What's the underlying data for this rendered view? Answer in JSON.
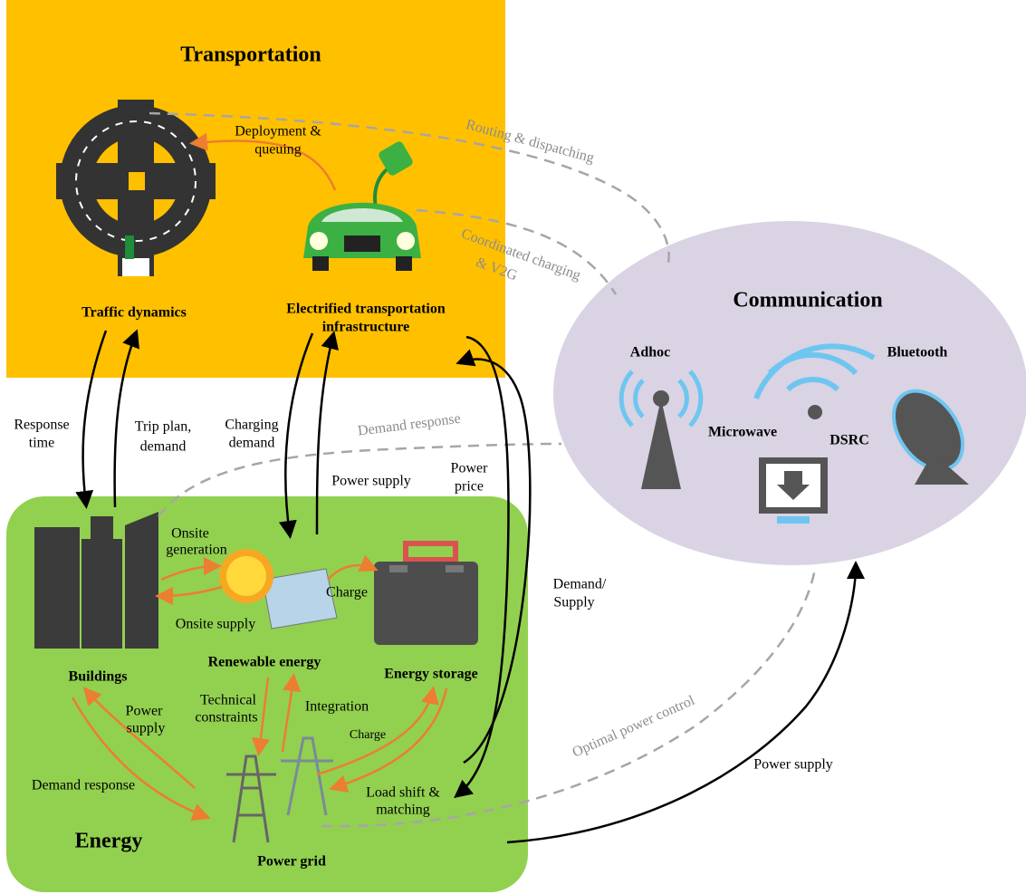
{
  "regions": {
    "transportation": "Transportation",
    "energy": "Energy",
    "communication": "Communication"
  },
  "technologies": [
    "Adhoc",
    "Bluetooth",
    "Microwave",
    "DSRC"
  ],
  "nodes": {
    "traffic": [
      "Traffic dynamics"
    ],
    "ev": [
      "Electrified transportation",
      "infrastructure"
    ],
    "buildings": [
      "Buildings"
    ],
    "renewable": [
      "Renewable energy"
    ],
    "storage": [
      "Energy storage"
    ],
    "grid": [
      "Power grid"
    ]
  },
  "links": [
    [
      "Routing & dispatching"
    ],
    [
      "Deployment &",
      "queuing"
    ],
    [
      "Coordinated charging",
      "& V2G"
    ],
    [
      "Response",
      "time"
    ],
    [
      "Trip plan,",
      "demand"
    ],
    [
      "Charging",
      "demand"
    ],
    [
      "Demand response"
    ],
    [
      "Power supply"
    ],
    [
      "Power",
      "price"
    ],
    [
      "Onsite",
      "generation"
    ],
    [
      "Onsite supply"
    ],
    [
      "Charge"
    ],
    [
      "Demand/",
      "Supply"
    ],
    [
      "Power",
      "supply"
    ],
    [
      "Technical",
      "constraints"
    ],
    [
      "Integration"
    ],
    [
      "Charge"
    ],
    [
      "Demand response"
    ],
    [
      "Load shift &",
      "matching"
    ],
    [
      "Optimal power control"
    ],
    [
      "Power supply"
    ]
  ]
}
